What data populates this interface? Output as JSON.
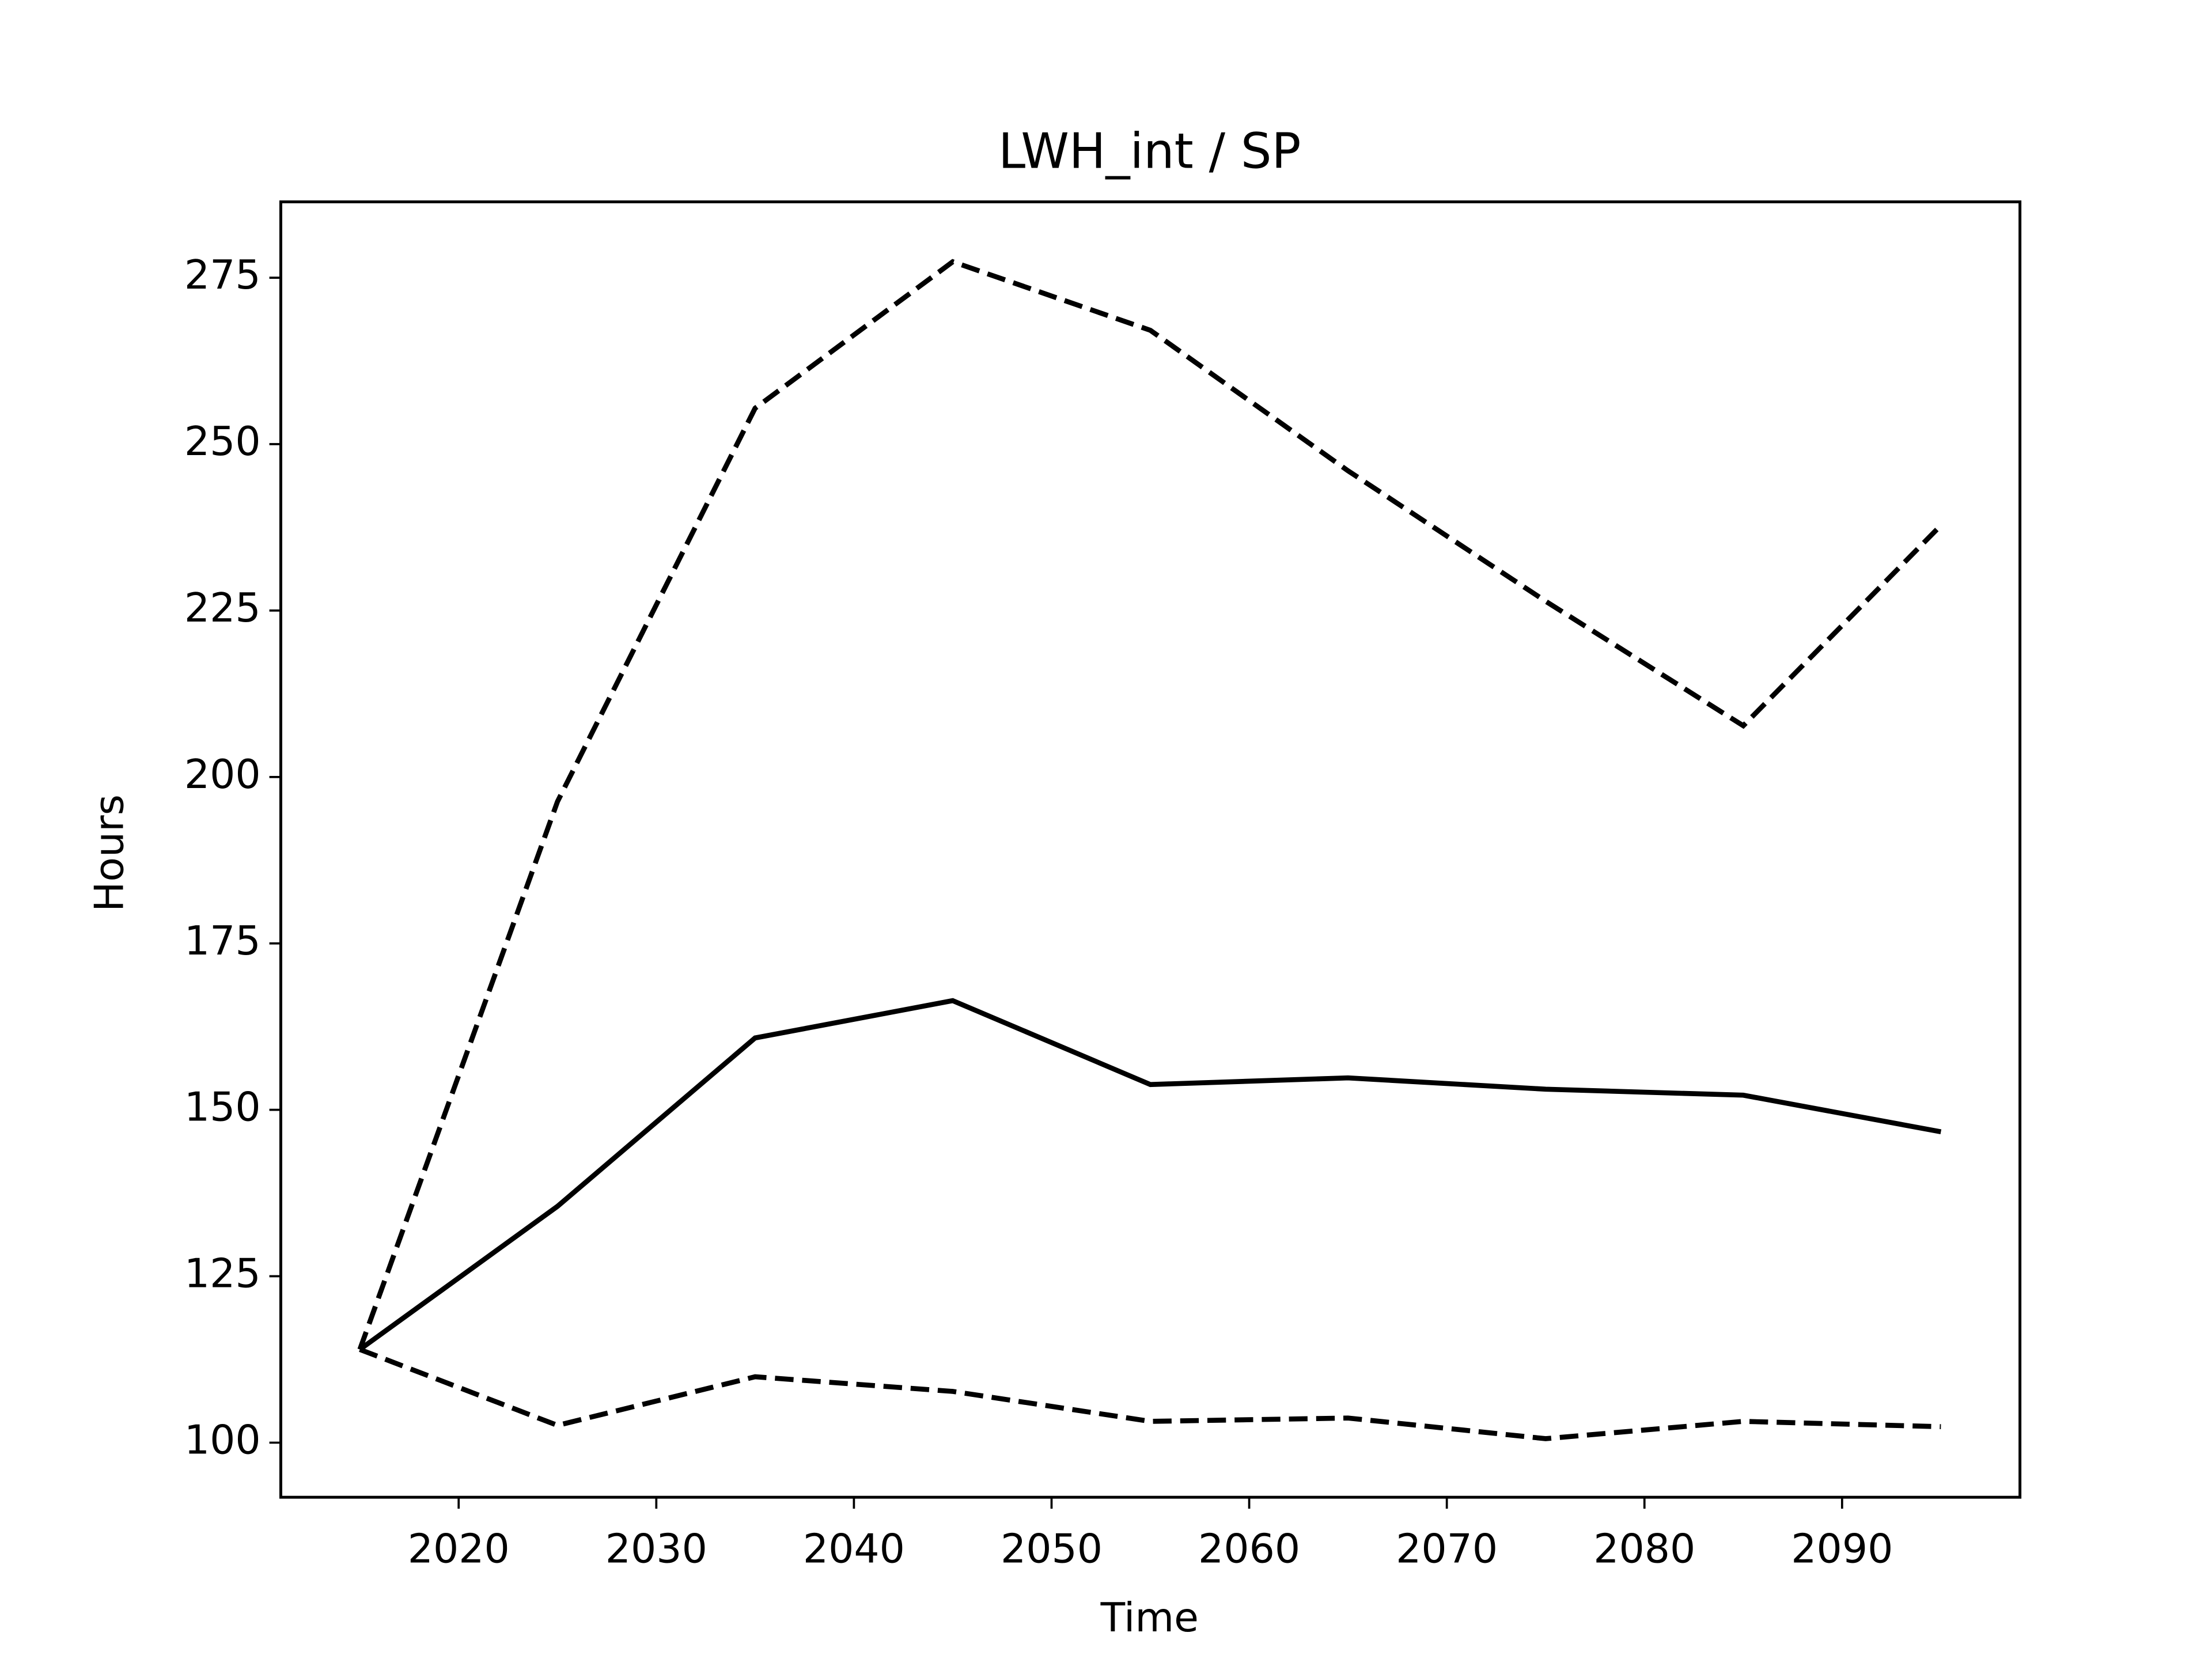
{
  "chart_data": {
    "type": "line",
    "title": "LWH_int / SP",
    "x_label": "Time",
    "y_label": "Hours",
    "x": [
      2015,
      2025,
      2035,
      2045,
      2055,
      2065,
      2075,
      2085,
      2095
    ],
    "series": [
      {
        "color": "#000000",
        "linestyle": "solid",
        "values": [
          114,
          135.5,
          160.8,
          166.4,
          153.8,
          154.8,
          153.1,
          152.2,
          146.7
        ]
      },
      {
        "color": "#000000",
        "linestyle": "dashed",
        "values": [
          114,
          196.3,
          255.4,
          277.4,
          267.1,
          246,
          226.4,
          207.7,
          237.8
        ]
      },
      {
        "color": "#000000",
        "linestyle": "dashed",
        "values": [
          114,
          102.6,
          109.9,
          107.7,
          103.2,
          103.7,
          100.6,
          103.2,
          102.4
        ]
      }
    ],
    "xlim": [
      2011,
      2099
    ],
    "xticks": [
      2020,
      2030,
      2040,
      2050,
      2060,
      2070,
      2080,
      2090
    ],
    "ylim": [
      91.8,
      286.4
    ],
    "yticks": [
      100,
      125,
      150,
      175,
      200,
      225,
      250,
      275
    ],
    "grid": false
  }
}
